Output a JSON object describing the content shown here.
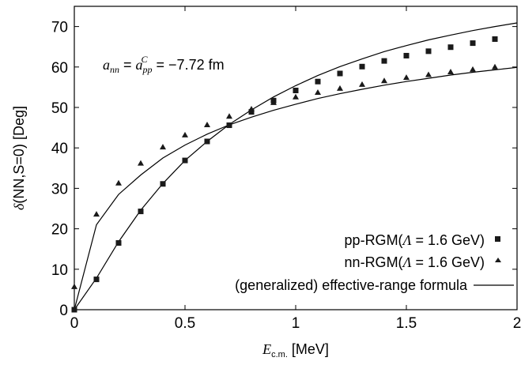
{
  "chart_data": {
    "type": "scatter",
    "xlabel": "E_c.m. [MeV]",
    "ylabel": "δ(NN,S=0) [Deg]",
    "xlim": [
      0,
      2
    ],
    "ylim": [
      0,
      75
    ],
    "x_ticks": [
      "0",
      "0.5",
      "1",
      "1.5",
      "2"
    ],
    "y_ticks": [
      "0",
      "10",
      "20",
      "30",
      "40",
      "50",
      "60",
      "70"
    ],
    "annotation": "a_nn = a_pp^C = −7.72 fm",
    "legend_position": "bottom-right",
    "series": [
      {
        "name": "pp-RGM(Λ = 1.6 GeV)",
        "marker": "square",
        "x": [
          0,
          0.1,
          0.2,
          0.3,
          0.4,
          0.5,
          0.6,
          0.7,
          0.8,
          0.9,
          1.0,
          1.1,
          1.2,
          1.3,
          1.4,
          1.5,
          1.6,
          1.7,
          1.8,
          1.9
        ],
        "y": [
          0,
          7.5,
          16.5,
          24.3,
          31.1,
          36.9,
          41.6,
          45.6,
          48.9,
          51.7,
          54.2,
          56.4,
          58.4,
          60.1,
          61.5,
          62.8,
          63.9,
          64.9,
          65.9,
          66.9
        ]
      },
      {
        "name": "nn-RGM(Λ = 1.6 GeV)",
        "marker": "triangle",
        "x": [
          0,
          0.1,
          0.2,
          0.3,
          0.4,
          0.5,
          0.6,
          0.7,
          0.8,
          0.9,
          1.0,
          1.1,
          1.2,
          1.3,
          1.4,
          1.5,
          1.6,
          1.7,
          1.8,
          1.9
        ],
        "y": [
          5.7,
          23.6,
          31.3,
          36.2,
          40.2,
          43.2,
          45.7,
          47.8,
          49.6,
          51.2,
          52.6,
          53.7,
          54.7,
          55.7,
          56.6,
          57.4,
          58.1,
          58.8,
          59.4,
          60.0
        ]
      },
      {
        "name": "(generalized) effective-range formula",
        "marker": "line",
        "curves": [
          {
            "x": [
              0,
              0.1,
              0.2,
              0.3,
              0.4,
              0.5,
              0.6,
              0.7,
              0.8,
              0.9,
              1.0,
              1.1,
              1.2,
              1.3,
              1.4,
              1.5,
              1.6,
              1.7,
              1.8,
              1.9,
              2.0
            ],
            "y": [
              0,
              7.8,
              16.8,
              24.6,
              31.2,
              36.9,
              41.6,
              45.8,
              49.4,
              52.6,
              55.4,
              57.9,
              60.1,
              62.0,
              63.8,
              65.3,
              66.7,
              67.9,
              69.0,
              70.0,
              70.9
            ]
          },
          {
            "x": [
              0,
              0.1,
              0.2,
              0.3,
              0.4,
              0.5,
              0.6,
              0.7,
              0.8,
              0.9,
              1.0,
              1.1,
              1.2,
              1.3,
              1.4,
              1.5,
              1.6,
              1.7,
              1.8,
              1.9,
              2.0
            ],
            "y": [
              0,
              21.0,
              28.5,
              33.3,
              37.5,
              40.7,
              43.4,
              45.7,
              47.6,
              49.3,
              50.8,
              52.2,
              53.4,
              54.5,
              55.5,
              56.4,
              57.2,
              58.0,
              58.7,
              59.3,
              59.9
            ]
          }
        ]
      }
    ]
  }
}
